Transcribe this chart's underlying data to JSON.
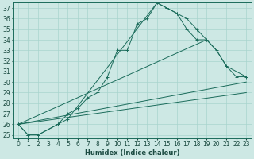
{
  "xlabel": "Humidex (Indice chaleur)",
  "bg_color": "#cde8e4",
  "grid_color": "#a8d4ce",
  "line_color": "#1a6b5a",
  "xlim": [
    -0.5,
    23.5
  ],
  "ylim": [
    24.7,
    37.5
  ],
  "line1_x": [
    0,
    1,
    2,
    3,
    4,
    5,
    6,
    7,
    8,
    9,
    10,
    11,
    12,
    13,
    14,
    15,
    16,
    17,
    18,
    19
  ],
  "line1_y": [
    26,
    25,
    25,
    25.5,
    26,
    27,
    27.5,
    28.5,
    29,
    30.5,
    33,
    33,
    35.5,
    36,
    37.5,
    37,
    36.5,
    36,
    35,
    34
  ],
  "line2_x": [
    0,
    1,
    2,
    3,
    4,
    5,
    14,
    15,
    16,
    17,
    18,
    19,
    20,
    21,
    22,
    23
  ],
  "line2_y": [
    26,
    25,
    25,
    25.5,
    26,
    26.5,
    37.5,
    37,
    36.5,
    35,
    34,
    34,
    33,
    31.5,
    30.5,
    30.5
  ],
  "line3_x": [
    0,
    19,
    20,
    21,
    22,
    23
  ],
  "line3_y": [
    26,
    34,
    33,
    31.5,
    31,
    30.5
  ],
  "line4_x": [
    0,
    23
  ],
  "line4_y": [
    26,
    30
  ],
  "line5_x": [
    0,
    23
  ],
  "line5_y": [
    26,
    29
  ],
  "xlabel_fontsize": 6,
  "tick_fontsize": 5.5
}
